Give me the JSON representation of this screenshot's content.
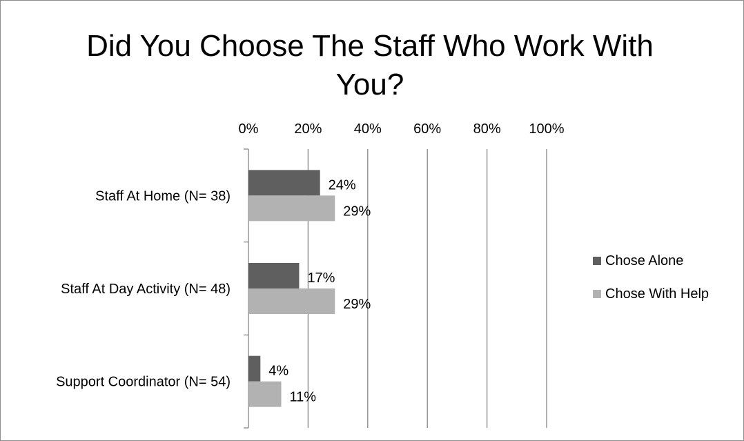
{
  "chart_data": {
    "type": "bar",
    "orientation": "horizontal",
    "title": "Did You Choose The Staff Who Work With\nYou?",
    "categories": [
      "Staff At Home (N= 38)",
      "Staff At Day Activity (N= 48)",
      "Support Coordinator (N= 54)"
    ],
    "series": [
      {
        "name": "Chose Alone",
        "values": [
          24,
          17,
          4
        ],
        "labels": [
          "24%",
          "17%",
          "4%"
        ],
        "color": "#5f5f5f"
      },
      {
        "name": "Chose With Help",
        "values": [
          29,
          29,
          11
        ],
        "labels": [
          "29%",
          "29%",
          "11%"
        ],
        "color": "#b2b2b2"
      }
    ],
    "xlim": [
      0,
      100
    ],
    "x_ticks": [
      "0%",
      "20%",
      "40%",
      "60%",
      "80%",
      "100%"
    ],
    "x_axis_position": "top",
    "grid": true,
    "legend_position": "right"
  }
}
